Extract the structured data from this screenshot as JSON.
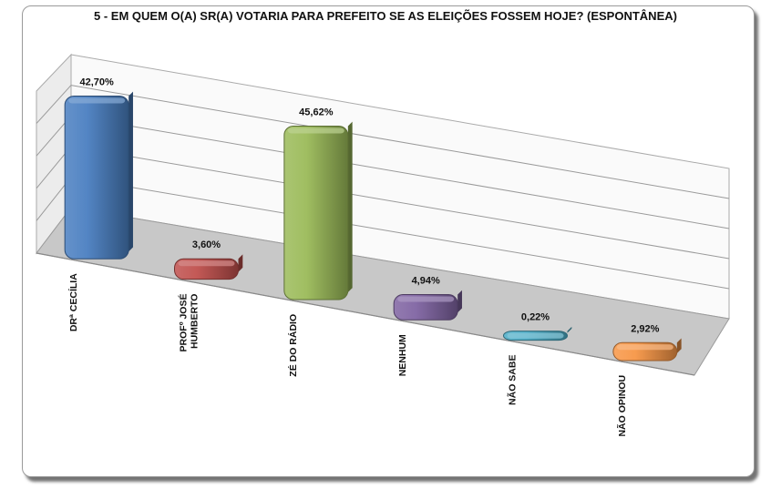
{
  "chart_data": {
    "type": "bar",
    "title": "5 - EM QUEM O(A) SR(A) VOTARIA PARA PREFEITO SE AS ELEIÇÕES FOSSEM HOJE? (ESPONTÂNEA)",
    "categories": [
      [
        "DRª CECÍLIA"
      ],
      [
        "PROFº JOSÉ",
        "HUMBERTO"
      ],
      [
        "ZÉ DO RÁDIO"
      ],
      [
        "NENHUM"
      ],
      [
        "NÃO SABE"
      ],
      [
        "NÃO OPINOU"
      ]
    ],
    "values": [
      42.7,
      3.6,
      45.62,
      4.94,
      0.22,
      2.92
    ],
    "value_labels": [
      "42,70%",
      "3,60%",
      "45,62%",
      "4,94%",
      "0,22%",
      "2,92%"
    ],
    "colors": [
      "#4a7fc1",
      "#c0504d",
      "#9bbb59",
      "#8064a2",
      "#4bacc6",
      "#f79646"
    ],
    "ylim": [
      0,
      50
    ],
    "grid": true,
    "perspective": "3d"
  }
}
